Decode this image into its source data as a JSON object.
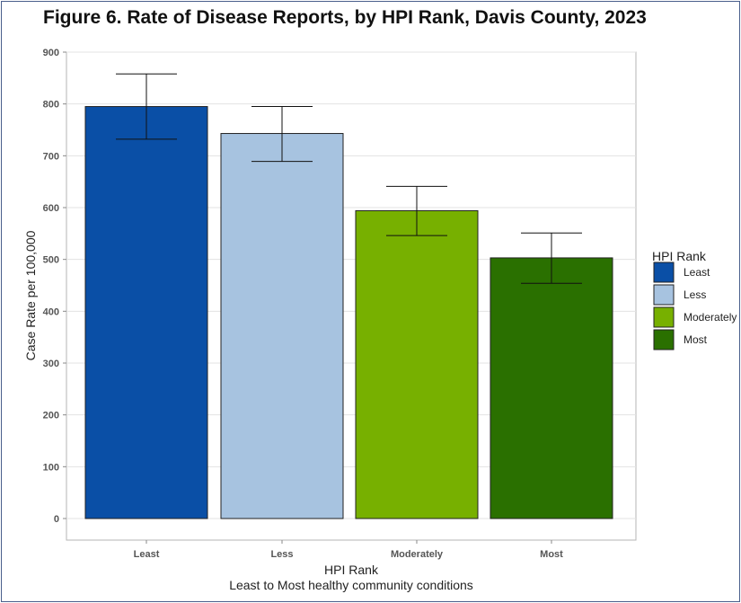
{
  "colors": {
    "least": "#0a4fa6",
    "less": "#a7c3e0",
    "moderately": "#77b000",
    "most": "#2a7000"
  },
  "chart_data": {
    "type": "bar",
    "title": "Figure 6. Rate of Disease Reports, by HPI Rank, Davis County, 2023",
    "xlabel": "HPI Rank",
    "xlabel_sub": "Least to Most healthy community conditions",
    "ylabel": "Case Rate per 100,000",
    "ylim": [
      0,
      900
    ],
    "yticks": [
      0,
      100,
      200,
      300,
      400,
      500,
      600,
      700,
      800,
      900
    ],
    "grid": true,
    "categories": [
      "Least",
      "Less",
      "Moderately",
      "Most"
    ],
    "values": [
      795,
      743,
      594,
      503
    ],
    "error_low": [
      732,
      689,
      546,
      454
    ],
    "error_high": [
      858,
      795,
      641,
      551
    ],
    "legend": {
      "title": "HPI Rank",
      "placement": "right",
      "entries": [
        "Least",
        "Less",
        "Moderately",
        "Most"
      ]
    }
  }
}
